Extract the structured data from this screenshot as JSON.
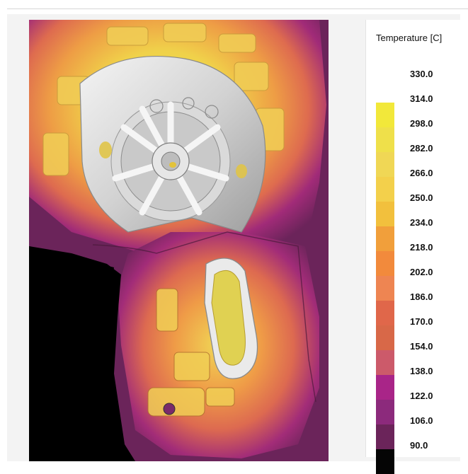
{
  "legend": {
    "title": "Temperature [C]",
    "labels": [
      "330.0",
      "314.0",
      "298.0",
      "282.0",
      "266.0",
      "250.0",
      "234.0",
      "218.0",
      "202.0",
      "186.0",
      "170.0",
      "154.0",
      "138.0",
      "122.0",
      "106.0",
      "90.0"
    ],
    "band_colors": [
      "#f2e83a",
      "#efe04a",
      "#f0d755",
      "#f3d04b",
      "#f2c03d",
      "#f19f3b",
      "#f28a3c",
      "#ee8552",
      "#e0674a",
      "#d86848",
      "#cc5a6a",
      "#a92588",
      "#8c2a7c",
      "#6b245a",
      "#050505"
    ]
  },
  "scene": {
    "description_colors": {
      "outer": "#6b245a",
      "mid": "#c24f5a",
      "warm": "#ee8552",
      "hot": "#f0d755",
      "metal": "#e4e4e4"
    }
  }
}
